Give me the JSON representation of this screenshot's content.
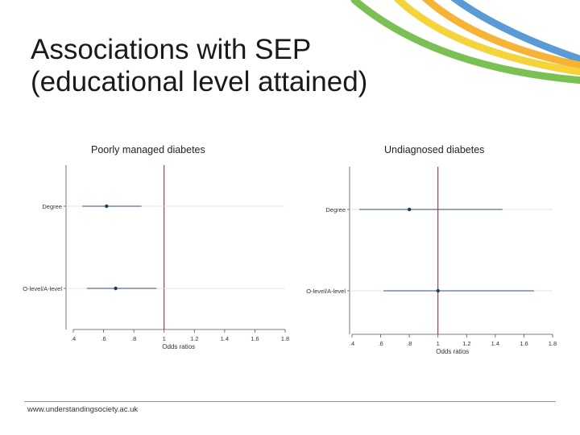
{
  "slide": {
    "title_line1": "Associations with SEP",
    "title_line2": "(educational level attained)",
    "footer_url": "www.understandingsociety.ac.uk"
  },
  "colors": {
    "swoosh_blue": "#5b9bd5",
    "swoosh_orange": "#f7b335",
    "swoosh_yellow": "#f5d43b",
    "swoosh_green": "#7bc052",
    "ref_line": "#8b1a2b",
    "ci_line": "#2e4f7a",
    "point": "#1f3a5f",
    "row_guide": "#cfe3ef"
  },
  "chart_data": [
    {
      "type": "scatter",
      "title": "Poorly managed diabetes",
      "xlabel": "Odds ratios",
      "xlim": [
        0.4,
        1.8
      ],
      "xticks": [
        ".4",
        ".6",
        ".8",
        "1",
        "1.2",
        "1.4",
        "1.6",
        "1.8"
      ],
      "reference_line": 1,
      "categories": [
        "Degree",
        "O-level/A-level"
      ],
      "estimates": [
        0.62,
        0.68
      ],
      "ci_low": [
        0.46,
        0.49
      ],
      "ci_high": [
        0.85,
        0.95
      ]
    },
    {
      "type": "scatter",
      "title": "Undiagnosed diabetes",
      "xlabel": "Odds ratios",
      "xlim": [
        0.4,
        1.8
      ],
      "xticks": [
        ".4",
        ".6",
        ".8",
        "1",
        "1.2",
        "1.4",
        "1.6",
        "1.8"
      ],
      "reference_line": 1,
      "categories": [
        "Degree",
        "O-level/A-level"
      ],
      "estimates": [
        0.8,
        1.0
      ],
      "ci_low": [
        0.45,
        0.62
      ],
      "ci_high": [
        1.45,
        1.67
      ]
    }
  ]
}
